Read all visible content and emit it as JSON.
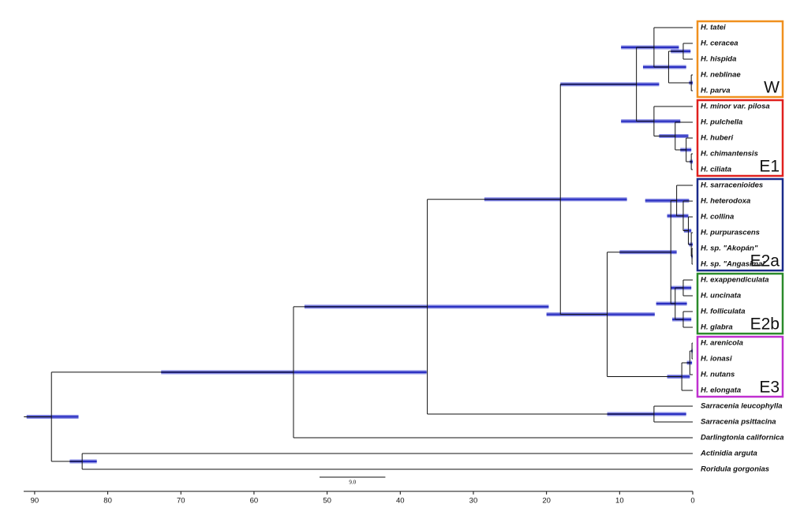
{
  "axis": {
    "xlim": [
      91.5,
      0
    ],
    "xticks": [
      90,
      80,
      70,
      60,
      50,
      40,
      30,
      20,
      10,
      0
    ]
  },
  "scale_bar": {
    "value": 9,
    "label": "9.0"
  },
  "tree": {
    "age": 87.7,
    "hpd": [
      91.1,
      84.0
    ],
    "children": [
      {
        "age": 54.6,
        "hpd": [
          72.7,
          36.4
        ],
        "children": [
          {
            "age": 36.3,
            "hpd": [
              53.1,
              19.7
            ],
            "children": [
              {
                "age": 18.1,
                "hpd": [
                  28.5,
                  9.0
                ],
                "children": [
                  {
                    "age": 7.7,
                    "hpd": [
                      18.1,
                      4.6
                    ],
                    "children": [
                      {
                        "clade": "W",
                        "color": "#f0901e",
                        "age": 5.3,
                        "hpd": [
                          9.8,
                          1.9
                        ],
                        "children": [
                          {
                            "label": "H. tatei"
                          },
                          {
                            "age": 3.3,
                            "hpd": [
                              6.8,
                              0.9
                            ],
                            "children": [
                              {
                                "age": 1.3,
                                "hpd": [
                                  3.0,
                                  0.3
                                ],
                                "children": [
                                  {
                                    "label": "H. ceracea"
                                  },
                                  {
                                    "label": "H. hispida"
                                  }
                                ]
                              },
                              {
                                "age": 0.2,
                                "hpd": [
                                  0.5,
                                  0.0
                                ],
                                "children": [
                                  {
                                    "label": "H. neblinae"
                                  },
                                  {
                                    "label": "H. parva"
                                  }
                                ]
                              }
                            ]
                          }
                        ]
                      },
                      {
                        "clade": "E1",
                        "color": "#e0201e",
                        "age": 5.3,
                        "hpd": [
                          9.8,
                          1.7
                        ],
                        "children": [
                          {
                            "label": "H. minor var. pilosa"
                          },
                          {
                            "age": 2.4,
                            "hpd": [
                              4.6,
                              0.6
                            ],
                            "children": [
                              {
                                "label": "H. pulchella"
                              },
                              {
                                "age": 0.9,
                                "hpd": [
                                  1.7,
                                  0.2
                                ],
                                "children": [
                                  {
                                    "label": "H. huberi"
                                  },
                                  {
                                    "age": 0.2,
                                    "hpd": [
                                      0.4,
                                      0.0
                                    ],
                                    "children": [
                                      {
                                        "label": "H. chimantensis"
                                      },
                                      {
                                        "label": "H. ciliata"
                                      }
                                    ]
                                  }
                                ]
                              }
                            ]
                          }
                        ]
                      }
                    ]
                  },
                  {
                    "age": 11.7,
                    "hpd": [
                      20.0,
                      5.2
                    ],
                    "children": [
                      {
                        "age": 3.0,
                        "hpd": [
                          10.0,
                          2.2
                        ],
                        "children": [
                          {
                            "clade": "E2a",
                            "color": "#1a2a8a",
                            "age": 2.2,
                            "hpd": [
                              6.5,
                              0.5
                            ],
                            "children": [
                              {
                                "label": "H. sarracenioides"
                              },
                              {
                                "age": 1.3,
                                "hpd": [
                                  3.5,
                                  0.6
                                ],
                                "children": [
                                  {
                                    "label": "H. heterodoxa"
                                  },
                                  {
                                    "age": 0.6,
                                    "hpd": [
                                      1.2,
                                      0.2
                                    ],
                                    "children": [
                                      {
                                        "label": "H. collina"
                                      },
                                      {
                                        "age": 0.2,
                                        "hpd": [
                                          0.5,
                                          0.0
                                        ],
                                        "children": [
                                          {
                                            "label": "H. purpurascens"
                                          },
                                          {
                                            "age": 0.1,
                                            "hpd": [
                                              0.2,
                                              0.0
                                            ],
                                            "children": [
                                              {
                                                "label": "H. sp. \"Akopán\""
                                              },
                                              {
                                                "label": "H. sp. \"Angasima\""
                                              }
                                            ]
                                          }
                                        ]
                                      }
                                    ]
                                  }
                                ]
                              }
                            ]
                          },
                          {
                            "clade": "E2b",
                            "color": "#2a8a2a",
                            "age": 2.4,
                            "hpd": [
                              5.0,
                              0.8
                            ],
                            "children": [
                              {
                                "age": 1.3,
                                "hpd": [
                                  3.0,
                                  0.2
                                ],
                                "children": [
                                  {
                                    "label": "H. exappendiculata"
                                  },
                                  {
                                    "label": "H. uncinata"
                                  }
                                ]
                              },
                              {
                                "age": 1.3,
                                "hpd": [
                                  2.8,
                                  0.2
                                ],
                                "children": [
                                  {
                                    "label": "H. folliculata"
                                  },
                                  {
                                    "label": "H. glabra"
                                  }
                                ]
                              }
                            ]
                          }
                        ]
                      },
                      {
                        "clade": "E3",
                        "color": "#c030d0",
                        "age": 1.5,
                        "hpd": [
                          3.5,
                          0.4
                        ],
                        "children": [
                          {
                            "age": 0.4,
                            "hpd": [
                              0.8,
                              0.1
                            ],
                            "children": [
                              {
                                "age": 0.1,
                                "hpd": [
                                  0.2,
                                  0.0
                                ],
                                "children": [
                                  {
                                    "label": "H. arenicola"
                                  },
                                  {
                                    "label": "H. ionasi"
                                  }
                                ]
                              },
                              {
                                "label": "H. nutans"
                              }
                            ]
                          },
                          {
                            "label": "H. elongata"
                          }
                        ]
                      }
                    ]
                  }
                ]
              },
              {
                "age": 5.3,
                "hpd": [
                  11.7,
                  0.9
                ],
                "children": [
                  {
                    "label": "Sarracenia leucophylla"
                  },
                  {
                    "label": "Sarracenia psittacina"
                  }
                ]
              }
            ]
          },
          {
            "label": "Darlingtonia californica"
          }
        ]
      },
      {
        "age": 83.5,
        "hpd": [
          85.2,
          81.5
        ],
        "children": [
          {
            "label": "Actinidia arguta"
          },
          {
            "label": "Roridula gorgonias"
          }
        ]
      }
    ]
  }
}
